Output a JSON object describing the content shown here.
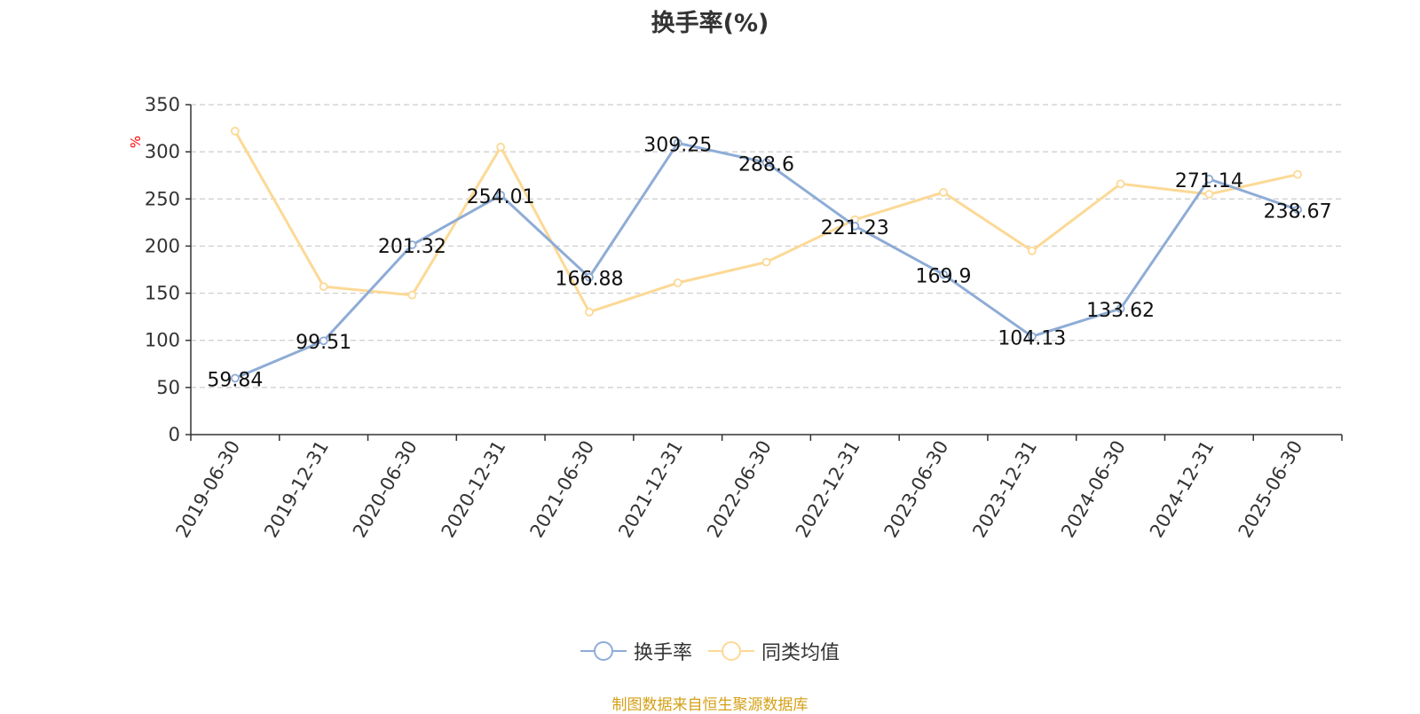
{
  "chart_data": {
    "type": "line",
    "title": "换手率(%)",
    "ylabel": "%",
    "xlabel": "",
    "categories": [
      "2019-06-30",
      "2019-12-31",
      "2020-06-30",
      "2020-12-31",
      "2021-06-30",
      "2021-12-31",
      "2022-06-30",
      "2022-12-31",
      "2023-06-30",
      "2023-12-31",
      "2024-06-30",
      "2024-12-31",
      "2025-06-30"
    ],
    "ylim": [
      0,
      350
    ],
    "yticks": [
      0,
      50,
      100,
      150,
      200,
      250,
      300,
      350
    ],
    "grid": true,
    "legend_position": "bottom",
    "series": [
      {
        "name": "换手率",
        "color": "#8eacd6",
        "show_labels": true,
        "values": [
          59.84,
          99.51,
          201.32,
          254.01,
          166.88,
          309.25,
          288.6,
          221.23,
          169.9,
          104.13,
          133.62,
          271.14,
          238.67
        ]
      },
      {
        "name": "同类均值",
        "color": "#fcd996",
        "show_labels": false,
        "values": [
          322,
          157,
          148,
          305,
          130,
          161,
          183,
          228,
          257,
          195,
          266,
          255,
          276
        ]
      }
    ]
  },
  "footer": {
    "source": "制图数据来自恒生聚源数据库"
  },
  "colors": {
    "axis": "#333333",
    "grid": "#cccccc",
    "ylabel": "#ff0000",
    "source": "#d4a017"
  }
}
